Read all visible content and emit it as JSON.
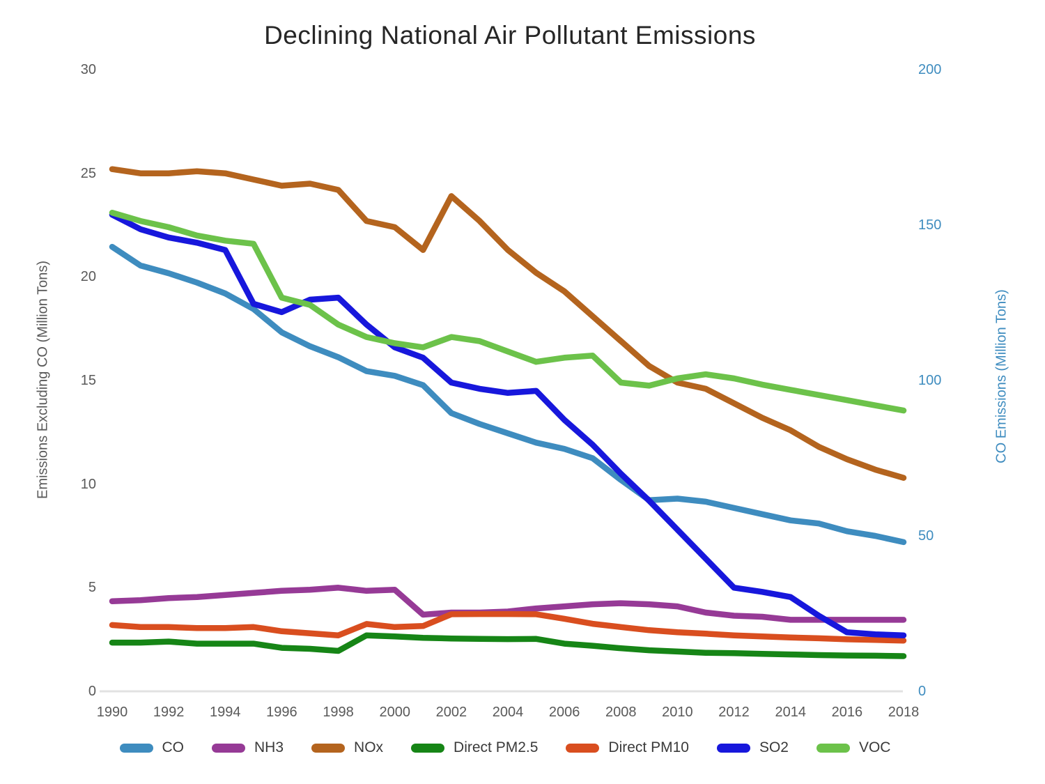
{
  "title": "Declining National Air Pollutant Emissions",
  "axes": {
    "left": {
      "title": "Emissions Excluding CO (Million Tons)",
      "ticks": [
        0,
        5,
        10,
        15,
        20,
        25,
        30
      ],
      "range": [
        0,
        30
      ],
      "label_color": "#595959"
    },
    "right": {
      "title": "CO Emissions (Million Tons)",
      "ticks": [
        0,
        50,
        100,
        150,
        200
      ],
      "range": [
        0,
        200
      ],
      "label_color": "#3e8cbf"
    },
    "x": {
      "ticks": [
        1990,
        1992,
        1994,
        1996,
        1998,
        2000,
        2002,
        2004,
        2006,
        2008,
        2010,
        2012,
        2014,
        2016,
        2018
      ],
      "range": [
        1990,
        2018
      ]
    }
  },
  "legend": [
    {
      "label": "CO",
      "color": "#3e8cbf"
    },
    {
      "label": "NH3",
      "color": "#963a96"
    },
    {
      "label": "NOx",
      "color": "#b4641e"
    },
    {
      "label": "Direct PM2.5",
      "color": "#168516"
    },
    {
      "label": "Direct PM10",
      "color": "#d94e1f"
    },
    {
      "label": "SO2",
      "color": "#1717dc"
    },
    {
      "label": "VOC",
      "color": "#6cc24a"
    }
  ],
  "chart_data": {
    "type": "line",
    "title": "Declining National Air Pollutant Emissions",
    "x": [
      1990,
      1991,
      1992,
      1993,
      1994,
      1995,
      1996,
      1997,
      1998,
      1999,
      2000,
      2001,
      2002,
      2003,
      2004,
      2005,
      2006,
      2007,
      2008,
      2009,
      2010,
      2011,
      2012,
      2013,
      2014,
      2015,
      2016,
      2017,
      2018
    ],
    "x_ticks": [
      1990,
      1992,
      1994,
      1996,
      1998,
      2000,
      2002,
      2004,
      2006,
      2008,
      2010,
      2012,
      2014,
      2016,
      2018
    ],
    "left_ylabel": "Emissions Excluding CO (Million Tons)",
    "right_ylabel": "CO Emissions (Million Tons)",
    "left_ylim": [
      0,
      30
    ],
    "right_ylim": [
      0,
      200
    ],
    "grid": false,
    "legend_position": "bottom",
    "series": [
      {
        "name": "CO",
        "axis": "right",
        "color": "#3e8cbf",
        "values": [
          143,
          137,
          134.5,
          131.5,
          128,
          123,
          115.5,
          111,
          107.5,
          103,
          101.5,
          98.5,
          89.5,
          86,
          83,
          80,
          78,
          75,
          68,
          61.5,
          62,
          61,
          59,
          57,
          55,
          54,
          51.5,
          50,
          48
        ]
      },
      {
        "name": "NH3",
        "axis": "left",
        "color": "#963a96",
        "values": [
          4.35,
          4.4,
          4.5,
          4.55,
          4.65,
          4.75,
          4.85,
          4.9,
          5,
          4.85,
          4.9,
          3.7,
          3.8,
          3.8,
          3.85,
          4,
          4.1,
          4.2,
          4.25,
          4.2,
          4.1,
          3.8,
          3.65,
          3.6,
          3.45,
          3.45,
          3.45,
          3.45,
          3.45
        ]
      },
      {
        "name": "NOx",
        "axis": "left",
        "color": "#b4641e",
        "values": [
          25.2,
          25,
          25,
          25.1,
          25,
          24.7,
          24.4,
          24.5,
          24.2,
          22.7,
          22.4,
          21.3,
          23.9,
          22.7,
          21.3,
          20.2,
          19.3,
          18.1,
          16.9,
          15.7,
          14.9,
          14.6,
          13.9,
          13.2,
          12.6,
          11.8,
          11.2,
          10.7,
          10.3
        ]
      },
      {
        "name": "Direct PM2.5",
        "axis": "left",
        "color": "#168516",
        "values": [
          2.35,
          2.35,
          2.4,
          2.3,
          2.3,
          2.3,
          2.1,
          2.05,
          1.95,
          2.7,
          2.65,
          2.58,
          2.55,
          2.53,
          2.52,
          2.53,
          2.3,
          2.2,
          2.08,
          1.98,
          1.92,
          1.86,
          1.84,
          1.81,
          1.78,
          1.75,
          1.73,
          1.72,
          1.7
        ]
      },
      {
        "name": "Direct PM10",
        "axis": "left",
        "color": "#d94e1f",
        "values": [
          3.2,
          3.1,
          3.1,
          3.05,
          3.05,
          3.1,
          2.9,
          2.8,
          2.7,
          3.25,
          3.1,
          3.15,
          3.72,
          3.73,
          3.73,
          3.72,
          3.5,
          3.26,
          3.1,
          2.95,
          2.85,
          2.78,
          2.7,
          2.65,
          2.6,
          2.56,
          2.51,
          2.48,
          2.45
        ]
      },
      {
        "name": "SO2",
        "axis": "left",
        "color": "#1717dc",
        "values": [
          23,
          22.3,
          21.9,
          21.65,
          21.3,
          18.7,
          18.3,
          18.9,
          19,
          17.7,
          16.6,
          16.1,
          14.9,
          14.6,
          14.4,
          14.5,
          13.1,
          11.9,
          10.5,
          9.2,
          7.8,
          6.4,
          5,
          4.8,
          4.55,
          3.65,
          2.85,
          2.75,
          2.7
        ]
      },
      {
        "name": "VOC",
        "axis": "left",
        "color": "#6cc24a",
        "values": [
          23.1,
          22.7,
          22.4,
          22,
          21.75,
          21.6,
          19,
          18.65,
          17.7,
          17.1,
          16.8,
          16.6,
          17.1,
          16.9,
          16.4,
          15.9,
          16.1,
          16.2,
          14.9,
          14.75,
          15.1,
          15.3,
          15.1,
          14.8,
          14.55,
          14.3,
          14.05,
          13.8,
          13.55
        ]
      }
    ]
  },
  "baseline_color": "#e2e2e2"
}
